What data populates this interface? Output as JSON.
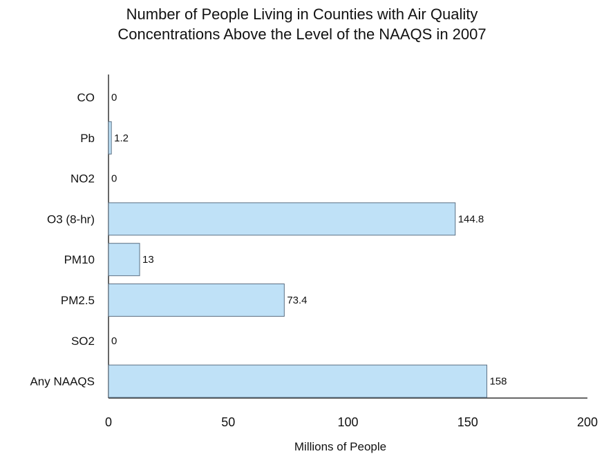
{
  "chart_data": {
    "type": "bar",
    "orientation": "horizontal",
    "title_lines": [
      "Number of People Living in Counties with Air Quality",
      "Concentrations Above the Level of the NAAQS in 2007"
    ],
    "xlabel": "Millions of People",
    "ylabel": "",
    "categories": [
      "CO",
      "Pb",
      "NO2",
      "O3 (8-hr)",
      "PM10",
      "PM2.5",
      "SO2",
      "Any NAAQS"
    ],
    "values": [
      0,
      1.2,
      0,
      144.8,
      13,
      73.4,
      0,
      158
    ],
    "value_labels": [
      "0",
      "1.2",
      "0",
      "144.8",
      "13",
      "73.4",
      "0",
      "158"
    ],
    "xlim": [
      0,
      200
    ],
    "xticks": [
      0,
      50,
      100,
      150,
      200
    ],
    "grid": false,
    "bar_color": "#bfe1f7",
    "bar_edge_color": "#5a6e82"
  }
}
